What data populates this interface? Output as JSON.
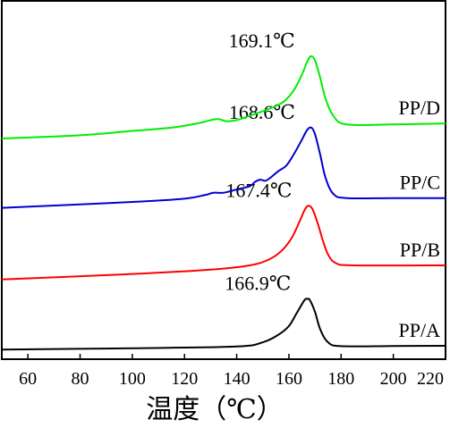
{
  "chart_data": {
    "type": "line",
    "xlabel": "温度（℃）",
    "ylabel": "",
    "xlim": [
      50,
      220
    ],
    "xticks": [
      60,
      80,
      100,
      120,
      140,
      160,
      180,
      200,
      220
    ],
    "xtick_labels": [
      "60",
      "80",
      "100",
      "120",
      "140",
      "160",
      "180",
      "200",
      "220"
    ],
    "grid": false,
    "legend": "none",
    "series": [
      {
        "name": "PP/A",
        "color": "#000000",
        "peak_label": "166.9℃",
        "points": [
          [
            50,
            0.33
          ],
          [
            100,
            0.66
          ],
          [
            140,
            1.08
          ],
          [
            150,
            2.11
          ],
          [
            156,
            3.95
          ],
          [
            160,
            6.05
          ],
          [
            163,
            9.21
          ],
          [
            166,
            12.37
          ],
          [
            167,
            12.63
          ],
          [
            168,
            12.37
          ],
          [
            170,
            9.47
          ],
          [
            172,
            5.26
          ],
          [
            175,
            2.11
          ],
          [
            180,
            1.16
          ],
          [
            200,
            1.21
          ],
          [
            220,
            1.26
          ]
        ]
      },
      {
        "name": "PP/B",
        "color": "#ff0000",
        "peak_label": "167.4℃",
        "points": [
          [
            50,
            17.37
          ],
          [
            100,
            18.68
          ],
          [
            130,
            19.74
          ],
          [
            145,
            20.79
          ],
          [
            152,
            22.11
          ],
          [
            157,
            24.21
          ],
          [
            161,
            27.37
          ],
          [
            164,
            31.32
          ],
          [
            166,
            34.21
          ],
          [
            167.4,
            35.26
          ],
          [
            169,
            34.47
          ],
          [
            171,
            31.05
          ],
          [
            173,
            26.84
          ],
          [
            175,
            23.42
          ],
          [
            178,
            21.32
          ],
          [
            185,
            20.79
          ],
          [
            220,
            20.79
          ]
        ]
      },
      {
        "name": "PP/C",
        "color": "#0000cc",
        "peak_label": "168.6℃",
        "points": [
          [
            50,
            34.74
          ],
          [
            100,
            36.18
          ],
          [
            120,
            36.97
          ],
          [
            128,
            37.89
          ],
          [
            131,
            38.42
          ],
          [
            135,
            38.42
          ],
          [
            140,
            39.21
          ],
          [
            145,
            40
          ],
          [
            147,
            41.05
          ],
          [
            149,
            41.58
          ],
          [
            151,
            41.32
          ],
          [
            153,
            42.11
          ],
          [
            156,
            43.68
          ],
          [
            159,
            45
          ],
          [
            162,
            47.89
          ],
          [
            165,
            51.32
          ],
          [
            167,
            53.68
          ],
          [
            168.6,
            54.21
          ],
          [
            170,
            52.63
          ],
          [
            172,
            47.63
          ],
          [
            174,
            42.11
          ],
          [
            177,
            38.16
          ],
          [
            182,
            37.11
          ],
          [
            200,
            37.11
          ],
          [
            220,
            37.11
          ]
        ]
      },
      {
        "name": "PP/D",
        "color": "#00ee00",
        "peak_label": "169.1℃",
        "points": [
          [
            50,
            51.58
          ],
          [
            80,
            52.37
          ],
          [
            100,
            53.42
          ],
          [
            115,
            54.21
          ],
          [
            125,
            55.26
          ],
          [
            130,
            56.05
          ],
          [
            133,
            56.32
          ],
          [
            136,
            55.79
          ],
          [
            140,
            56.05
          ],
          [
            145,
            57.11
          ],
          [
            152,
            58.68
          ],
          [
            158,
            60.53
          ],
          [
            162,
            63.42
          ],
          [
            165,
            67.11
          ],
          [
            167,
            70.26
          ],
          [
            168.5,
            71.58
          ],
          [
            170,
            70.53
          ],
          [
            172,
            66.32
          ],
          [
            174,
            61.32
          ],
          [
            177,
            57.11
          ],
          [
            182,
            55
          ],
          [
            200,
            55
          ],
          [
            220,
            55.26
          ]
        ]
      }
    ],
    "ylim": [
      -2,
      85
    ]
  }
}
